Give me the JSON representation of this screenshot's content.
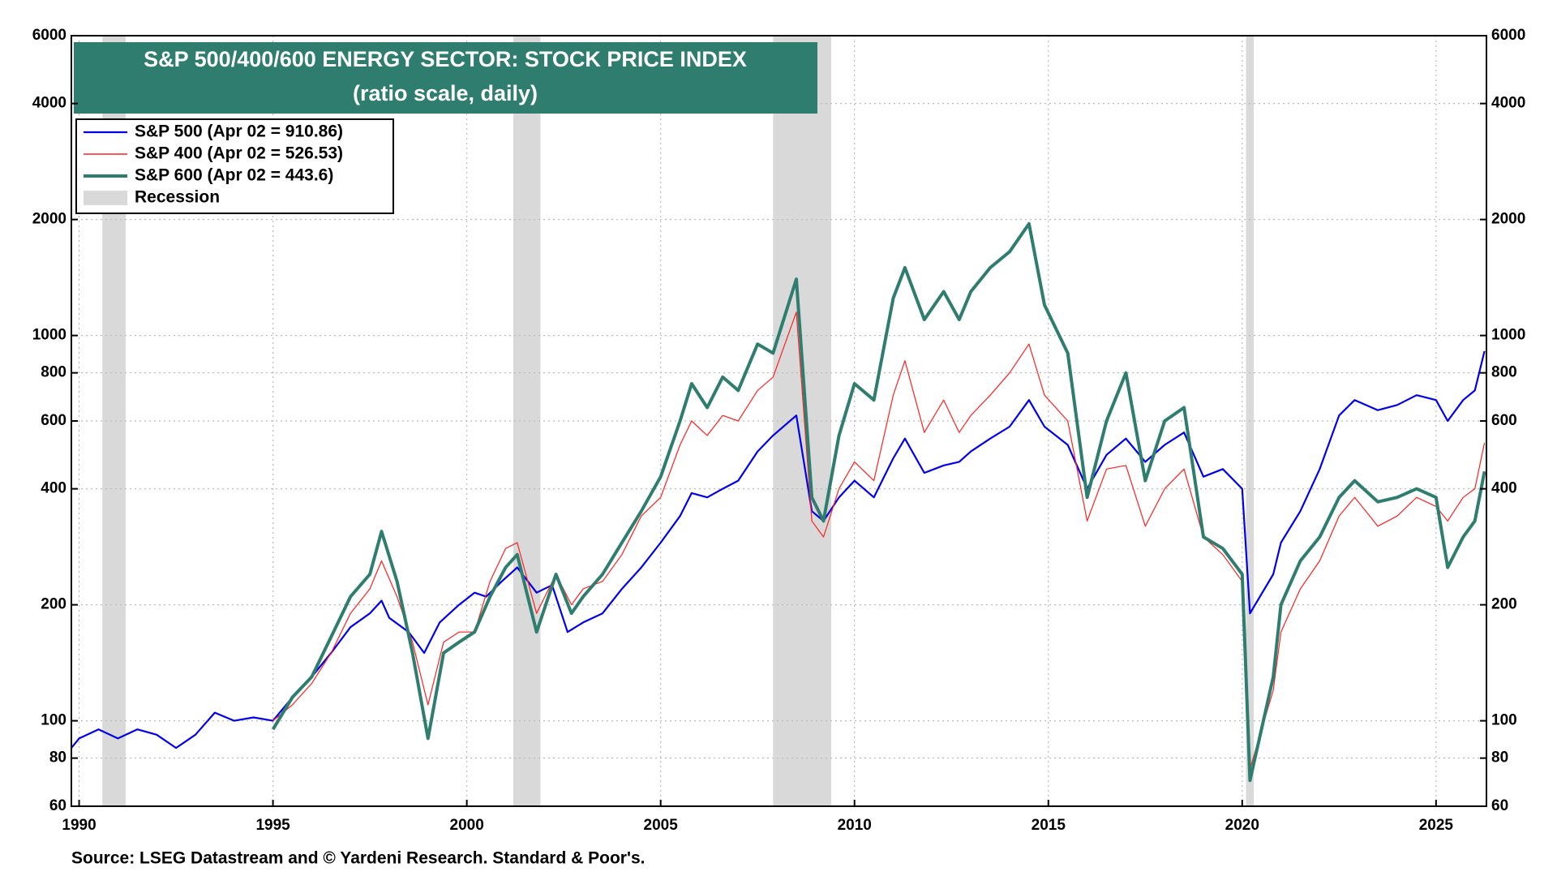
{
  "chart_data": {
    "type": "line",
    "title": "S&P 500/400/600 ENERGY SECTOR: STOCK PRICE INDEX",
    "subtitle": "(ratio scale, daily)",
    "source": "Source: LSEG Datastream and © Yardeni Research. Standard & Poor's.",
    "log_scale": true,
    "grid": true,
    "legend_position": "upper-left",
    "xlim": [
      1989.8,
      2026.3
    ],
    "xticks": [
      1990,
      1995,
      2000,
      2005,
      2010,
      2015,
      2020,
      2025
    ],
    "ylim": [
      60,
      6000
    ],
    "yticks": [
      60,
      80,
      100,
      200,
      400,
      600,
      800,
      1000,
      2000,
      4000,
      6000
    ],
    "recessions": {
      "name": "Recession",
      "color": "#d9d9d9",
      "spans": [
        [
          1990.6,
          1991.2
        ],
        [
          2001.2,
          2001.9
        ],
        [
          2007.9,
          2009.4
        ],
        [
          2020.1,
          2020.3
        ]
      ]
    },
    "series": [
      {
        "name": "S&P 500 (Apr 02 = 910.86)",
        "color": "#0000ee",
        "width": 2.2,
        "x": [
          1989.8,
          1990.0,
          1990.5,
          1991.0,
          1991.5,
          1992.0,
          1992.5,
          1993.0,
          1993.5,
          1994.0,
          1994.5,
          1995.0,
          1995.5,
          1996.0,
          1996.5,
          1997.0,
          1997.5,
          1997.8,
          1998.0,
          1998.5,
          1998.9,
          1999.3,
          1999.8,
          2000.2,
          2000.5,
          2000.9,
          2001.3,
          2001.8,
          2002.2,
          2002.6,
          2003.0,
          2003.5,
          2004.0,
          2004.5,
          2005.0,
          2005.5,
          2005.8,
          2006.2,
          2006.6,
          2007.0,
          2007.5,
          2007.9,
          2008.5,
          2008.9,
          2009.2,
          2009.6,
          2010.0,
          2010.5,
          2011.0,
          2011.3,
          2011.8,
          2012.3,
          2012.7,
          2013.0,
          2013.5,
          2014.0,
          2014.5,
          2014.9,
          2015.5,
          2016.0,
          2016.5,
          2017.0,
          2017.5,
          2018.0,
          2018.5,
          2019.0,
          2019.5,
          2020.0,
          2020.2,
          2020.8,
          2021.0,
          2021.5,
          2022.0,
          2022.5,
          2022.9,
          2023.5,
          2024.0,
          2024.5,
          2025.0,
          2025.3,
          2025.7,
          2026.0,
          2026.25
        ],
        "values": [
          85,
          90,
          95,
          90,
          95,
          92,
          85,
          92,
          105,
          100,
          102,
          100,
          115,
          130,
          150,
          175,
          190,
          205,
          185,
          170,
          150,
          180,
          200,
          215,
          210,
          230,
          250,
          215,
          225,
          170,
          180,
          190,
          220,
          250,
          290,
          340,
          390,
          380,
          400,
          420,
          500,
          550,
          620,
          350,
          330,
          380,
          420,
          380,
          480,
          540,
          440,
          460,
          470,
          500,
          540,
          580,
          680,
          580,
          520,
          400,
          490,
          540,
          470,
          520,
          560,
          430,
          450,
          400,
          190,
          240,
          290,
          350,
          450,
          620,
          680,
          640,
          660,
          700,
          680,
          600,
          680,
          720,
          910.86
        ]
      },
      {
        "name": "S&P 400 (Apr 02 = 526.53)",
        "color": "#ff2020",
        "width": 1.2,
        "x": [
          1995.0,
          1995.5,
          1996.0,
          1996.5,
          1997.0,
          1997.5,
          1997.8,
          1998.2,
          1998.6,
          1999.0,
          1999.4,
          1999.8,
          2000.2,
          2000.6,
          2001.0,
          2001.3,
          2001.8,
          2002.3,
          2002.7,
          2003.0,
          2003.5,
          2004.0,
          2004.5,
          2005.0,
          2005.5,
          2005.8,
          2006.2,
          2006.6,
          2007.0,
          2007.5,
          2007.9,
          2008.5,
          2008.9,
          2009.2,
          2009.6,
          2010.0,
          2010.5,
          2011.0,
          2011.3,
          2011.8,
          2012.3,
          2012.7,
          2013.0,
          2013.5,
          2014.0,
          2014.5,
          2014.9,
          2015.5,
          2016.0,
          2016.5,
          2017.0,
          2017.5,
          2018.0,
          2018.5,
          2019.0,
          2019.5,
          2020.0,
          2020.2,
          2020.8,
          2021.0,
          2021.5,
          2022.0,
          2022.5,
          2022.9,
          2023.5,
          2024.0,
          2024.5,
          2025.0,
          2025.3,
          2025.7,
          2026.0,
          2026.25
        ],
        "values": [
          100,
          110,
          125,
          150,
          190,
          220,
          260,
          210,
          160,
          110,
          160,
          170,
          170,
          230,
          280,
          290,
          190,
          240,
          200,
          220,
          230,
          270,
          340,
          380,
          520,
          600,
          550,
          620,
          600,
          720,
          780,
          1150,
          330,
          300,
          400,
          470,
          420,
          700,
          860,
          560,
          680,
          560,
          620,
          700,
          800,
          950,
          700,
          600,
          330,
          450,
          460,
          320,
          400,
          450,
          300,
          270,
          230,
          75,
          120,
          170,
          220,
          260,
          340,
          380,
          320,
          340,
          380,
          360,
          330,
          380,
          400,
          526.53
        ]
      },
      {
        "name": "S&P 600 (Apr 02 = 443.6)",
        "color": "#2e7d6e",
        "width": 4,
        "x": [
          1995.0,
          1995.5,
          1996.0,
          1996.5,
          1997.0,
          1997.5,
          1997.8,
          1998.2,
          1998.6,
          1999.0,
          1999.4,
          1999.8,
          2000.2,
          2000.6,
          2001.0,
          2001.3,
          2001.8,
          2002.3,
          2002.7,
          2003.0,
          2003.5,
          2004.0,
          2004.5,
          2005.0,
          2005.5,
          2005.8,
          2006.2,
          2006.6,
          2007.0,
          2007.5,
          2007.9,
          2008.5,
          2008.9,
          2009.2,
          2009.6,
          2010.0,
          2010.5,
          2011.0,
          2011.3,
          2011.8,
          2012.3,
          2012.7,
          2013.0,
          2013.5,
          2014.0,
          2014.5,
          2014.9,
          2015.5,
          2016.0,
          2016.5,
          2017.0,
          2017.5,
          2018.0,
          2018.5,
          2019.0,
          2019.5,
          2020.0,
          2020.2,
          2020.8,
          2021.0,
          2021.5,
          2022.0,
          2022.5,
          2022.9,
          2023.5,
          2024.0,
          2024.5,
          2025.0,
          2025.3,
          2025.7,
          2026.0,
          2026.25
        ],
        "values": [
          95,
          115,
          130,
          165,
          210,
          240,
          310,
          230,
          150,
          90,
          150,
          160,
          170,
          210,
          250,
          270,
          170,
          240,
          190,
          210,
          240,
          290,
          350,
          430,
          600,
          750,
          650,
          780,
          720,
          950,
          900,
          1400,
          380,
          330,
          550,
          750,
          680,
          1250,
          1500,
          1100,
          1300,
          1100,
          1300,
          1500,
          1650,
          1950,
          1200,
          900,
          380,
          600,
          800,
          420,
          600,
          650,
          300,
          280,
          240,
          70,
          130,
          200,
          260,
          300,
          380,
          420,
          370,
          380,
          400,
          380,
          250,
          300,
          330,
          443.6
        ]
      }
    ]
  }
}
